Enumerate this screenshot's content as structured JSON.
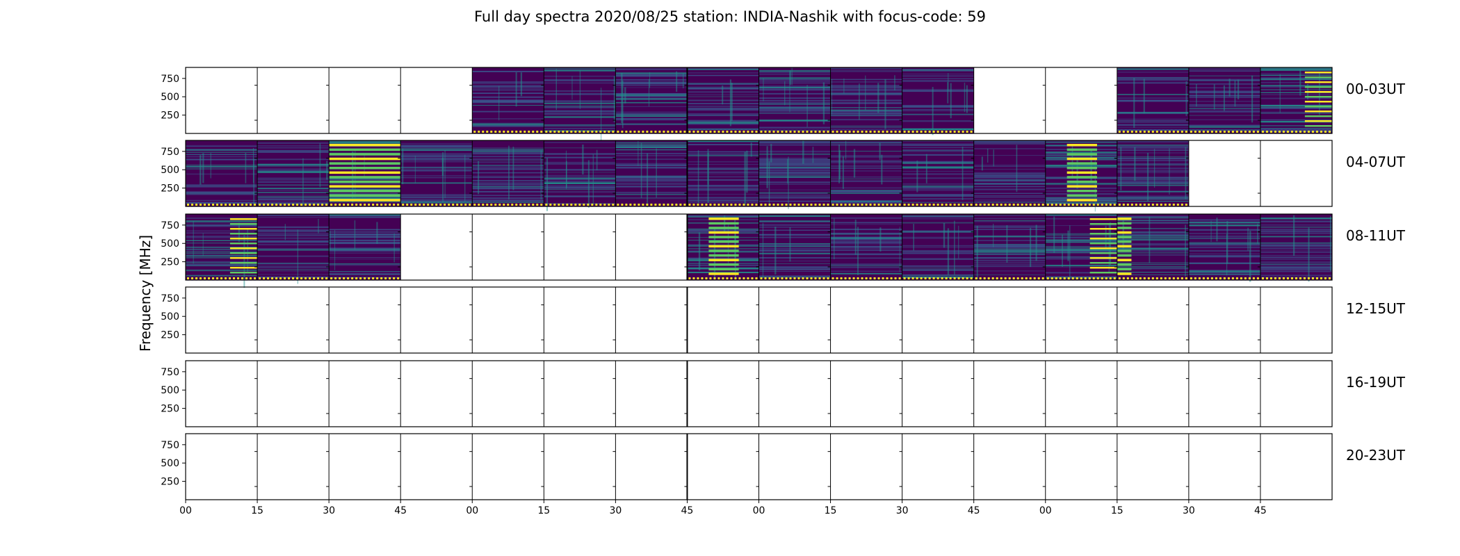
{
  "chart_data": {
    "type": "heatmap",
    "title": "Full day spectra 2020/08/25 station: INDIA-Nashik with focus-code: 59",
    "ylabel": "Frequency [MHz]",
    "ylim": [
      0,
      900
    ],
    "yticks": [
      "250",
      "500",
      "750"
    ],
    "xticks": [
      "00",
      "15",
      "30",
      "45",
      "00",
      "15",
      "30",
      "45",
      "00",
      "15",
      "30",
      "45",
      "00",
      "15",
      "30",
      "45"
    ],
    "colormap": [
      "#440154",
      "#3b528b",
      "#21918c",
      "#5ec962",
      "#fde725"
    ],
    "rows": [
      {
        "label": "00-03UT",
        "slots": [
          0,
          0,
          0,
          0,
          1,
          1,
          1,
          1,
          1,
          1,
          1,
          0,
          0,
          1,
          1,
          1
        ],
        "bright": [
          0,
          0,
          0,
          0,
          1,
          1,
          1,
          1,
          1,
          1,
          1,
          0,
          0,
          1,
          1,
          2
        ]
      },
      {
        "label": "04-07UT",
        "slots": [
          1,
          1,
          1,
          1,
          1,
          1,
          1,
          1,
          1,
          1,
          1,
          1,
          1,
          1,
          0,
          0
        ],
        "bright": [
          1,
          1,
          3,
          1,
          1,
          1,
          1,
          1,
          1,
          1,
          1,
          1,
          4,
          1,
          0,
          0
        ]
      },
      {
        "label": "08-11UT",
        "slots": [
          1,
          1,
          1,
          0,
          0,
          0,
          0,
          1,
          1,
          1,
          1,
          1,
          1,
          1,
          1,
          1
        ],
        "bright": [
          2,
          1,
          1,
          0,
          0,
          0,
          0,
          4,
          1,
          1,
          1,
          1,
          2,
          3,
          1,
          1
        ]
      },
      {
        "label": "12-15UT",
        "slots": [
          0,
          0,
          0,
          0,
          0,
          0,
          0,
          0,
          0,
          0,
          0,
          0,
          0,
          0,
          0,
          0
        ],
        "bright": [
          0,
          0,
          0,
          0,
          0,
          0,
          0,
          0,
          0,
          0,
          0,
          0,
          0,
          0,
          0,
          0
        ]
      },
      {
        "label": "16-19UT",
        "slots": [
          0,
          0,
          0,
          0,
          0,
          0,
          0,
          0,
          0,
          0,
          0,
          0,
          0,
          0,
          0,
          0
        ],
        "bright": [
          0,
          0,
          0,
          0,
          0,
          0,
          0,
          0,
          0,
          0,
          0,
          0,
          0,
          0,
          0,
          0
        ]
      },
      {
        "label": "20-23UT",
        "slots": [
          0,
          0,
          0,
          0,
          0,
          0,
          0,
          0,
          0,
          0,
          0,
          0,
          0,
          0,
          0,
          0
        ],
        "bright": [
          0,
          0,
          0,
          0,
          0,
          0,
          0,
          0,
          0,
          0,
          0,
          0,
          0,
          0,
          0,
          0
        ]
      }
    ]
  }
}
